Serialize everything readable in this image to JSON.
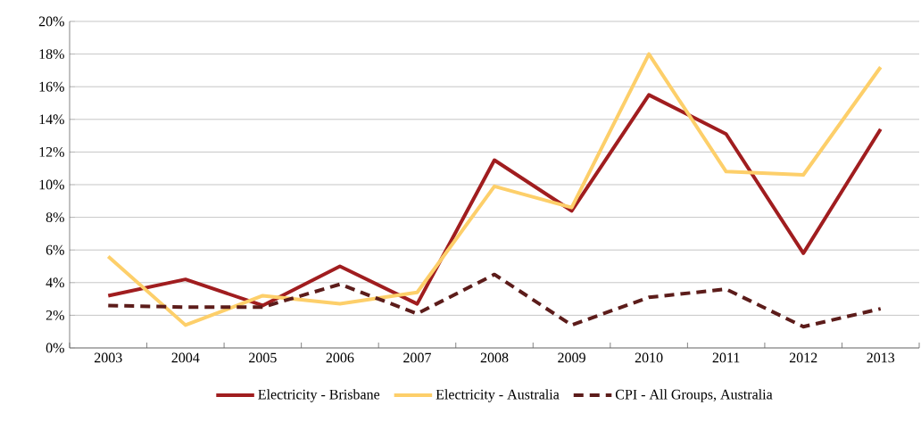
{
  "chart_data": {
    "type": "line",
    "categories": [
      "2003",
      "2004",
      "2005",
      "2006",
      "2007",
      "2008",
      "2009",
      "2010",
      "2011",
      "2012",
      "2013"
    ],
    "series": [
      {
        "name": "Electricity - Brisbane",
        "color": "#a01d1f",
        "line_style": "solid",
        "values": [
          3.2,
          4.2,
          2.6,
          5.0,
          2.7,
          11.5,
          8.4,
          15.5,
          13.1,
          5.8,
          13.4
        ]
      },
      {
        "name": "Electricity - Australia",
        "color": "#fdcf6a",
        "line_style": "solid",
        "values": [
          5.6,
          1.4,
          3.2,
          2.7,
          3.4,
          9.9,
          8.6,
          18.0,
          10.8,
          10.6,
          17.2
        ]
      },
      {
        "name": "CPI - All Groups, Australia",
        "color": "#5c1c1a",
        "line_style": "dashed",
        "values": [
          2.6,
          2.5,
          2.5,
          3.9,
          2.1,
          4.5,
          1.4,
          3.1,
          3.6,
          1.3,
          2.4
        ]
      }
    ],
    "ylim": [
      0,
      20
    ],
    "yticks": [
      {
        "value": 0,
        "label": "0%"
      },
      {
        "value": 2,
        "label": "2%"
      },
      {
        "value": 4,
        "label": "4%"
      },
      {
        "value": 6,
        "label": "6%"
      },
      {
        "value": 8,
        "label": "8%"
      },
      {
        "value": 10,
        "label": "10%"
      },
      {
        "value": 12,
        "label": "12%"
      },
      {
        "value": 14,
        "label": "14%"
      },
      {
        "value": 16,
        "label": "16%"
      },
      {
        "value": 18,
        "label": "18%"
      },
      {
        "value": 20,
        "label": "20%"
      }
    ],
    "grid": "y",
    "legend": "bottom",
    "marker": "none"
  }
}
